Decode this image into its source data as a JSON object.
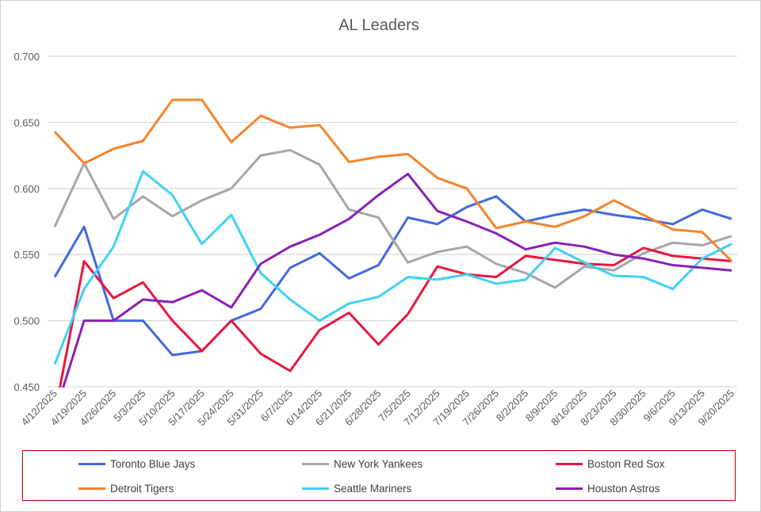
{
  "chart_data": {
    "type": "line",
    "title": "AL Leaders",
    "xlabel": "",
    "ylabel": "",
    "ylim": [
      0.45,
      0.7
    ],
    "yticks": [
      "0.450",
      "0.500",
      "0.550",
      "0.600",
      "0.650",
      "0.700"
    ],
    "grid": true,
    "legend_placement": "bottom",
    "categories": [
      "4/12/2025",
      "4/19/2025",
      "4/26/2025",
      "5/3/2025",
      "5/10/2025",
      "5/17/2025",
      "5/24/2025",
      "5/31/2025",
      "6/7/2025",
      "6/14/2025",
      "6/21/2025",
      "6/28/2025",
      "7/5/2025",
      "7/12/2025",
      "7/19/2025",
      "7/26/2025",
      "8/2/2025",
      "8/9/2025",
      "8/16/2025",
      "8/23/2025",
      "8/30/2025",
      "9/6/2025",
      "9/13/2025",
      "9/20/2025"
    ],
    "series": [
      {
        "name": "Toronto Blue Jays",
        "color": "#4169e1",
        "values": [
          0.533,
          0.571,
          0.5,
          0.5,
          0.474,
          0.477,
          0.5,
          0.509,
          0.54,
          0.551,
          0.532,
          0.542,
          0.578,
          0.573,
          0.586,
          0.594,
          0.575,
          0.58,
          0.584,
          0.58,
          0.577,
          0.573,
          0.584,
          0.577
        ]
      },
      {
        "name": "New York Yankees",
        "color": "#a6a6a6",
        "values": [
          0.571,
          0.619,
          0.577,
          0.594,
          0.579,
          0.591,
          0.6,
          0.625,
          0.629,
          0.618,
          0.584,
          0.578,
          0.544,
          0.552,
          0.556,
          0.543,
          0.536,
          0.525,
          0.541,
          0.538,
          0.551,
          0.559,
          0.557,
          0.564
        ]
      },
      {
        "name": "Boston Red Sox",
        "color": "#e8173f",
        "values": [
          0.429,
          0.545,
          0.517,
          0.529,
          0.5,
          0.477,
          0.5,
          0.475,
          0.462,
          0.493,
          0.506,
          0.482,
          0.505,
          0.541,
          0.535,
          0.533,
          0.549,
          0.546,
          0.543,
          0.542,
          0.555,
          0.549,
          0.547,
          0.545
        ]
      },
      {
        "name": "Detroit Tigers",
        "color": "#f5842c",
        "values": [
          0.643,
          0.619,
          0.63,
          0.636,
          0.667,
          0.667,
          0.635,
          0.655,
          0.646,
          0.648,
          0.62,
          0.624,
          0.626,
          0.608,
          0.6,
          0.57,
          0.575,
          0.571,
          0.579,
          0.591,
          0.58,
          0.569,
          0.567,
          0.545
        ]
      },
      {
        "name": "Seattle Mariners",
        "color": "#3dd2f2",
        "values": [
          0.467,
          0.524,
          0.556,
          0.613,
          0.595,
          0.558,
          0.58,
          0.536,
          0.516,
          0.5,
          0.513,
          0.518,
          0.533,
          0.531,
          0.535,
          0.528,
          0.531,
          0.555,
          0.544,
          0.534,
          0.533,
          0.524,
          0.547,
          0.558
        ]
      },
      {
        "name": "Houston Astros",
        "color": "#8b1fb5",
        "values": [
          0.429,
          0.5,
          0.5,
          0.516,
          0.514,
          0.523,
          0.51,
          0.543,
          0.556,
          0.565,
          0.577,
          0.595,
          0.611,
          0.583,
          0.575,
          0.566,
          0.554,
          0.559,
          0.556,
          0.55,
          0.547,
          0.542,
          0.54,
          0.538
        ]
      }
    ]
  },
  "colors": {
    "legend_border": "#c00000",
    "grid": "#d9d9d9"
  }
}
